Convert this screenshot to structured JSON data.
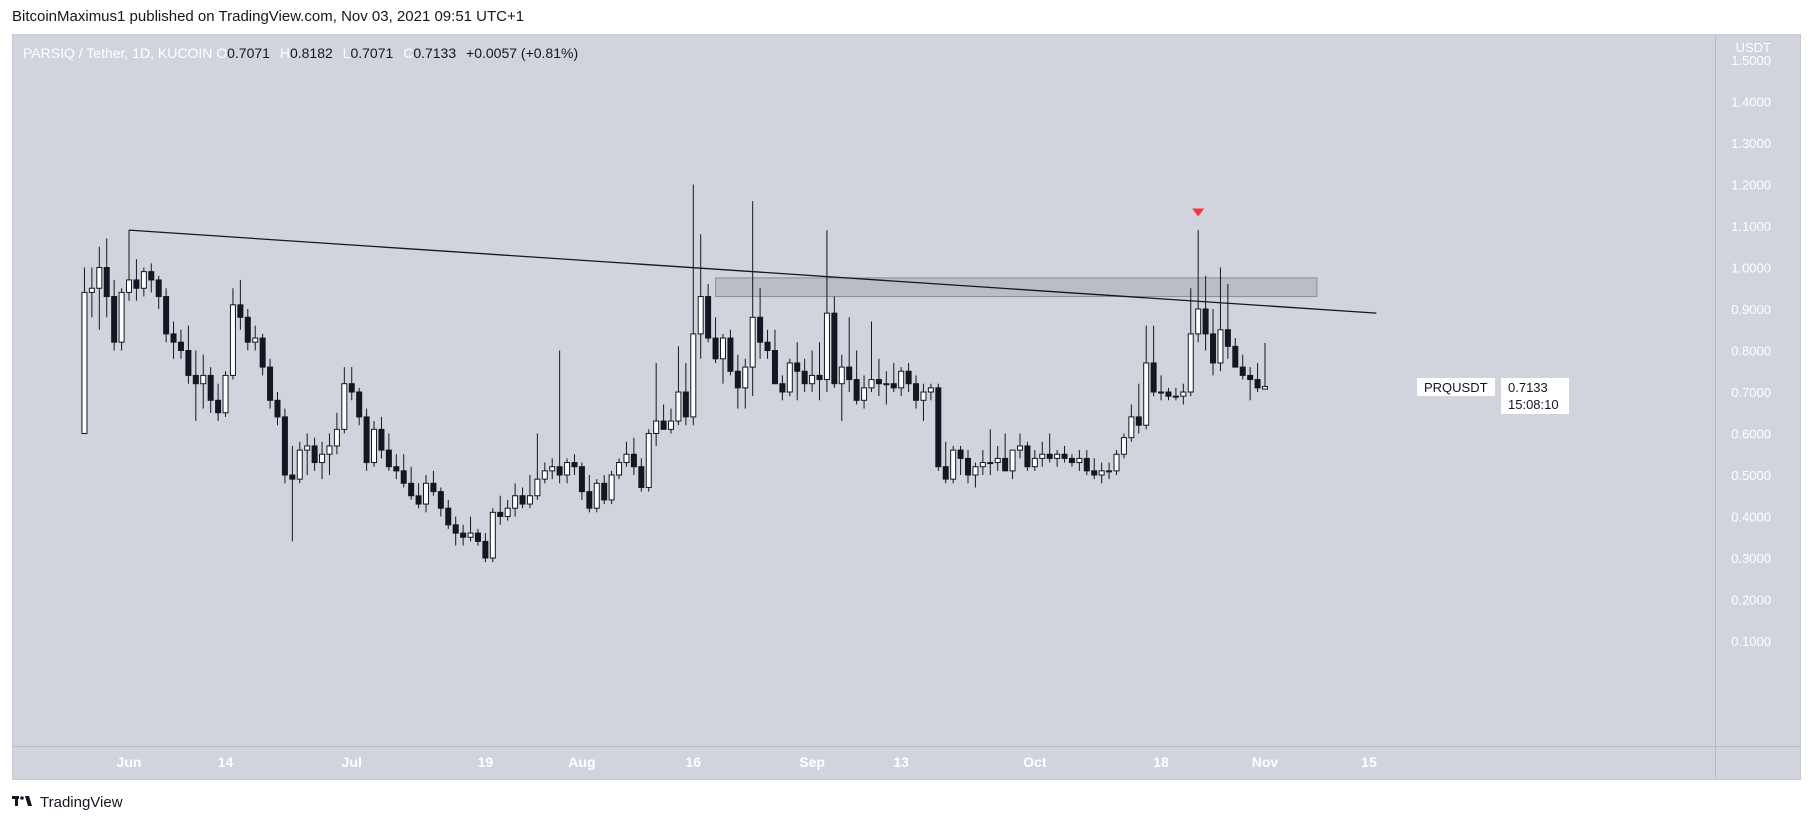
{
  "header": {
    "text": "BitcoinMaximus1 published on TradingView.com, Nov 03, 2021 09:51 UTC+1"
  },
  "legend": {
    "symbol": "PARSIQ / Tether, 1D, KUCOIN",
    "open_label": "O",
    "open": "0.7071",
    "high_label": "H",
    "high": "0.8182",
    "low_label": "L",
    "low": "0.7071",
    "close_label": "C",
    "close": "0.7133",
    "change": "+0.0057 (+0.81%)"
  },
  "price_label": {
    "ticker": "PRQUSDT",
    "price": "0.7133",
    "countdown": "15:08:10"
  },
  "footer": {
    "brand": "TradingView",
    "logo_icon": "tradingview-logo-icon"
  },
  "colors": {
    "background": "#d1d4dc",
    "up": "#ffffff",
    "down": "#131722",
    "zone": "#b2b5be",
    "marker": "#f23645"
  },
  "chart_data": {
    "type": "candlestick",
    "title": "PARSIQ / Tether, 1D, KUCOIN",
    "y_unit": "USDT",
    "ylim": [
      0.08,
      1.52
    ],
    "y_ticks": [
      1.5,
      1.4,
      1.3,
      1.2,
      1.1,
      1.0,
      0.9,
      0.8,
      0.7,
      0.6,
      0.5,
      0.4,
      0.3,
      0.2,
      0.1
    ],
    "y_tick_labels": [
      "1.5000",
      "1.4000",
      "1.3000",
      "1.2000",
      "1.1000",
      "1.0000",
      "0.9000",
      "0.8000",
      "0.7000",
      "0.6000",
      "0.5000",
      "0.4000",
      "0.3000",
      "0.2000",
      "0.1000"
    ],
    "x_ticks": [
      {
        "label": "Jun",
        "day": 0
      },
      {
        "label": "14",
        "day": 13
      },
      {
        "label": "Jul",
        "day": 30
      },
      {
        "label": "19",
        "day": 48
      },
      {
        "label": "Aug",
        "day": 61
      },
      {
        "label": "16",
        "day": 76
      },
      {
        "label": "Sep",
        "day": 92
      },
      {
        "label": "13",
        "day": 104
      },
      {
        "label": "Oct",
        "day": 122
      },
      {
        "label": "18",
        "day": 139
      },
      {
        "label": "Nov",
        "day": 153
      },
      {
        "label": "15",
        "day": 167
      }
    ],
    "candles": [
      [
        -6,
        0.6,
        1.0,
        0.6,
        0.94
      ],
      [
        -5,
        0.94,
        1.0,
        0.88,
        0.95
      ],
      [
        -4,
        0.95,
        1.05,
        0.85,
        1.0
      ],
      [
        -3,
        1.0,
        1.07,
        0.88,
        0.93
      ],
      [
        -2,
        0.93,
        0.97,
        0.8,
        0.82
      ],
      [
        -1,
        0.82,
        0.95,
        0.8,
        0.94
      ],
      [
        0,
        0.94,
        1.09,
        0.92,
        0.97
      ],
      [
        1,
        0.97,
        1.02,
        0.92,
        0.95
      ],
      [
        2,
        0.95,
        1.0,
        0.93,
        0.99
      ],
      [
        3,
        0.99,
        1.01,
        0.94,
        0.97
      ],
      [
        4,
        0.97,
        0.98,
        0.9,
        0.93
      ],
      [
        5,
        0.93,
        0.95,
        0.82,
        0.84
      ],
      [
        6,
        0.84,
        0.87,
        0.78,
        0.82
      ],
      [
        7,
        0.82,
        0.85,
        0.78,
        0.8
      ],
      [
        8,
        0.8,
        0.86,
        0.72,
        0.74
      ],
      [
        9,
        0.74,
        0.8,
        0.63,
        0.72
      ],
      [
        10,
        0.72,
        0.79,
        0.66,
        0.74
      ],
      [
        11,
        0.74,
        0.76,
        0.65,
        0.68
      ],
      [
        12,
        0.68,
        0.72,
        0.63,
        0.65
      ],
      [
        13,
        0.65,
        0.75,
        0.64,
        0.74
      ],
      [
        14,
        0.74,
        0.95,
        0.73,
        0.91
      ],
      [
        15,
        0.91,
        0.97,
        0.85,
        0.88
      ],
      [
        16,
        0.88,
        0.9,
        0.8,
        0.82
      ],
      [
        17,
        0.82,
        0.86,
        0.8,
        0.83
      ],
      [
        18,
        0.83,
        0.84,
        0.74,
        0.76
      ],
      [
        19,
        0.76,
        0.78,
        0.66,
        0.68
      ],
      [
        20,
        0.68,
        0.7,
        0.62,
        0.64
      ],
      [
        21,
        0.64,
        0.66,
        0.48,
        0.5
      ],
      [
        22,
        0.5,
        0.57,
        0.34,
        0.49
      ],
      [
        23,
        0.49,
        0.58,
        0.48,
        0.56
      ],
      [
        24,
        0.56,
        0.6,
        0.5,
        0.57
      ],
      [
        25,
        0.57,
        0.59,
        0.51,
        0.53
      ],
      [
        26,
        0.53,
        0.58,
        0.49,
        0.55
      ],
      [
        27,
        0.55,
        0.6,
        0.5,
        0.57
      ],
      [
        28,
        0.57,
        0.65,
        0.55,
        0.61
      ],
      [
        29,
        0.61,
        0.76,
        0.6,
        0.72
      ],
      [
        30,
        0.72,
        0.76,
        0.68,
        0.7
      ],
      [
        31,
        0.7,
        0.71,
        0.62,
        0.64
      ],
      [
        32,
        0.64,
        0.66,
        0.51,
        0.53
      ],
      [
        33,
        0.53,
        0.63,
        0.52,
        0.61
      ],
      [
        34,
        0.61,
        0.64,
        0.54,
        0.56
      ],
      [
        35,
        0.56,
        0.6,
        0.51,
        0.52
      ],
      [
        36,
        0.52,
        0.55,
        0.49,
        0.51
      ],
      [
        37,
        0.51,
        0.55,
        0.47,
        0.48
      ],
      [
        38,
        0.48,
        0.52,
        0.44,
        0.45
      ],
      [
        39,
        0.45,
        0.48,
        0.42,
        0.43
      ],
      [
        40,
        0.43,
        0.5,
        0.41,
        0.48
      ],
      [
        41,
        0.48,
        0.51,
        0.45,
        0.46
      ],
      [
        42,
        0.46,
        0.47,
        0.4,
        0.42
      ],
      [
        43,
        0.42,
        0.44,
        0.37,
        0.38
      ],
      [
        44,
        0.38,
        0.4,
        0.33,
        0.36
      ],
      [
        45,
        0.36,
        0.38,
        0.33,
        0.35
      ],
      [
        46,
        0.35,
        0.4,
        0.34,
        0.36
      ],
      [
        47,
        0.36,
        0.37,
        0.33,
        0.34
      ],
      [
        48,
        0.34,
        0.36,
        0.29,
        0.3
      ],
      [
        49,
        0.3,
        0.42,
        0.29,
        0.41
      ],
      [
        50,
        0.41,
        0.45,
        0.38,
        0.4
      ],
      [
        51,
        0.4,
        0.44,
        0.39,
        0.42
      ],
      [
        52,
        0.42,
        0.48,
        0.4,
        0.45
      ],
      [
        53,
        0.45,
        0.47,
        0.42,
        0.43
      ],
      [
        54,
        0.43,
        0.5,
        0.42,
        0.45
      ],
      [
        55,
        0.45,
        0.6,
        0.44,
        0.49
      ],
      [
        56,
        0.49,
        0.53,
        0.48,
        0.51
      ],
      [
        57,
        0.51,
        0.54,
        0.49,
        0.52
      ],
      [
        58,
        0.52,
        0.8,
        0.48,
        0.5
      ],
      [
        59,
        0.5,
        0.54,
        0.48,
        0.53
      ],
      [
        60,
        0.53,
        0.55,
        0.5,
        0.52
      ],
      [
        61,
        0.52,
        0.53,
        0.44,
        0.46
      ],
      [
        62,
        0.46,
        0.5,
        0.41,
        0.42
      ],
      [
        63,
        0.42,
        0.49,
        0.41,
        0.48
      ],
      [
        64,
        0.48,
        0.5,
        0.43,
        0.44
      ],
      [
        65,
        0.44,
        0.51,
        0.43,
        0.5
      ],
      [
        66,
        0.5,
        0.54,
        0.49,
        0.53
      ],
      [
        67,
        0.53,
        0.58,
        0.52,
        0.55
      ],
      [
        68,
        0.55,
        0.59,
        0.5,
        0.52
      ],
      [
        69,
        0.52,
        0.54,
        0.46,
        0.47
      ],
      [
        70,
        0.47,
        0.61,
        0.46,
        0.6
      ],
      [
        71,
        0.6,
        0.77,
        0.57,
        0.63
      ],
      [
        72,
        0.63,
        0.67,
        0.61,
        0.61
      ],
      [
        73,
        0.61,
        0.66,
        0.6,
        0.63
      ],
      [
        74,
        0.63,
        0.81,
        0.62,
        0.7
      ],
      [
        75,
        0.7,
        0.77,
        0.62,
        0.64
      ],
      [
        76,
        0.64,
        1.2,
        0.62,
        0.84
      ],
      [
        77,
        0.84,
        1.08,
        0.78,
        0.93
      ],
      [
        78,
        0.93,
        0.96,
        0.82,
        0.83
      ],
      [
        79,
        0.83,
        0.88,
        0.77,
        0.78
      ],
      [
        80,
        0.78,
        0.84,
        0.72,
        0.83
      ],
      [
        81,
        0.83,
        0.85,
        0.74,
        0.75
      ],
      [
        82,
        0.75,
        0.79,
        0.66,
        0.71
      ],
      [
        83,
        0.71,
        0.78,
        0.66,
        0.76
      ],
      [
        84,
        0.76,
        1.16,
        0.69,
        0.88
      ],
      [
        85,
        0.88,
        0.95,
        0.78,
        0.82
      ],
      [
        86,
        0.82,
        0.85,
        0.78,
        0.8
      ],
      [
        87,
        0.8,
        0.85,
        0.72,
        0.72
      ],
      [
        88,
        0.72,
        0.74,
        0.68,
        0.7
      ],
      [
        89,
        0.7,
        0.78,
        0.69,
        0.77
      ],
      [
        90,
        0.77,
        0.82,
        0.68,
        0.75
      ],
      [
        91,
        0.75,
        0.78,
        0.7,
        0.72
      ],
      [
        92,
        0.72,
        0.8,
        0.7,
        0.74
      ],
      [
        93,
        0.74,
        0.82,
        0.68,
        0.73
      ],
      [
        94,
        0.73,
        1.09,
        0.7,
        0.89
      ],
      [
        95,
        0.89,
        0.93,
        0.71,
        0.72
      ],
      [
        96,
        0.72,
        0.79,
        0.63,
        0.76
      ],
      [
        97,
        0.76,
        0.88,
        0.7,
        0.73
      ],
      [
        98,
        0.73,
        0.8,
        0.67,
        0.68
      ],
      [
        99,
        0.68,
        0.74,
        0.66,
        0.71
      ],
      [
        100,
        0.71,
        0.87,
        0.7,
        0.73
      ],
      [
        101,
        0.73,
        0.78,
        0.69,
        0.72
      ],
      [
        102,
        0.72,
        0.75,
        0.67,
        0.72
      ],
      [
        103,
        0.72,
        0.77,
        0.7,
        0.71
      ],
      [
        104,
        0.71,
        0.76,
        0.69,
        0.75
      ],
      [
        105,
        0.75,
        0.77,
        0.7,
        0.72
      ],
      [
        106,
        0.72,
        0.74,
        0.66,
        0.68
      ],
      [
        107,
        0.68,
        0.72,
        0.63,
        0.7
      ],
      [
        108,
        0.7,
        0.72,
        0.68,
        0.71
      ],
      [
        109,
        0.71,
        0.72,
        0.51,
        0.52
      ],
      [
        110,
        0.52,
        0.58,
        0.48,
        0.49
      ],
      [
        111,
        0.49,
        0.57,
        0.48,
        0.56
      ],
      [
        112,
        0.56,
        0.57,
        0.5,
        0.54
      ],
      [
        113,
        0.54,
        0.56,
        0.48,
        0.5
      ],
      [
        114,
        0.5,
        0.53,
        0.47,
        0.52
      ],
      [
        115,
        0.52,
        0.56,
        0.5,
        0.53
      ],
      [
        116,
        0.53,
        0.61,
        0.5,
        0.53
      ],
      [
        117,
        0.53,
        0.57,
        0.51,
        0.54
      ],
      [
        118,
        0.54,
        0.6,
        0.51,
        0.51
      ],
      [
        119,
        0.51,
        0.56,
        0.49,
        0.56
      ],
      [
        120,
        0.56,
        0.6,
        0.54,
        0.57
      ],
      [
        121,
        0.57,
        0.58,
        0.51,
        0.52
      ],
      [
        122,
        0.52,
        0.56,
        0.51,
        0.54
      ],
      [
        123,
        0.54,
        0.58,
        0.52,
        0.55
      ],
      [
        124,
        0.55,
        0.6,
        0.53,
        0.54
      ],
      [
        125,
        0.54,
        0.56,
        0.52,
        0.55
      ],
      [
        126,
        0.55,
        0.57,
        0.53,
        0.54
      ],
      [
        127,
        0.54,
        0.55,
        0.52,
        0.53
      ],
      [
        128,
        0.53,
        0.56,
        0.51,
        0.54
      ],
      [
        129,
        0.54,
        0.56,
        0.5,
        0.51
      ],
      [
        130,
        0.51,
        0.54,
        0.49,
        0.5
      ],
      [
        131,
        0.5,
        0.53,
        0.48,
        0.51
      ],
      [
        132,
        0.51,
        0.53,
        0.49,
        0.51
      ],
      [
        133,
        0.51,
        0.56,
        0.5,
        0.55
      ],
      [
        134,
        0.55,
        0.6,
        0.54,
        0.59
      ],
      [
        135,
        0.59,
        0.67,
        0.58,
        0.64
      ],
      [
        136,
        0.64,
        0.72,
        0.6,
        0.62
      ],
      [
        137,
        0.62,
        0.86,
        0.61,
        0.77
      ],
      [
        138,
        0.77,
        0.86,
        0.69,
        0.7
      ],
      [
        139,
        0.7,
        0.74,
        0.68,
        0.7
      ],
      [
        140,
        0.7,
        0.71,
        0.68,
        0.69
      ],
      [
        141,
        0.69,
        0.71,
        0.68,
        0.69
      ],
      [
        142,
        0.69,
        0.72,
        0.67,
        0.7
      ],
      [
        143,
        0.7,
        0.95,
        0.69,
        0.84
      ],
      [
        144,
        0.84,
        1.09,
        0.82,
        0.9
      ],
      [
        145,
        0.9,
        0.98,
        0.8,
        0.84
      ],
      [
        146,
        0.84,
        0.9,
        0.74,
        0.77
      ],
      [
        147,
        0.77,
        1.0,
        0.75,
        0.85
      ],
      [
        148,
        0.85,
        0.96,
        0.78,
        0.81
      ],
      [
        149,
        0.81,
        0.83,
        0.76,
        0.76
      ],
      [
        150,
        0.76,
        0.79,
        0.73,
        0.74
      ],
      [
        151,
        0.74,
        0.76,
        0.68,
        0.73
      ],
      [
        152,
        0.73,
        0.77,
        0.7,
        0.71
      ],
      [
        153,
        0.7071,
        0.8182,
        0.7071,
        0.7133
      ]
    ],
    "trendline": {
      "start": [
        0,
        1.09
      ],
      "end": [
        168,
        0.89
      ]
    },
    "resistance_zone": {
      "from_day": 79,
      "to_day": 160,
      "low": 0.93,
      "high": 0.975
    },
    "marker": {
      "day": 144,
      "price": 1.135,
      "shape": "triangle-down"
    },
    "grid": false
  }
}
